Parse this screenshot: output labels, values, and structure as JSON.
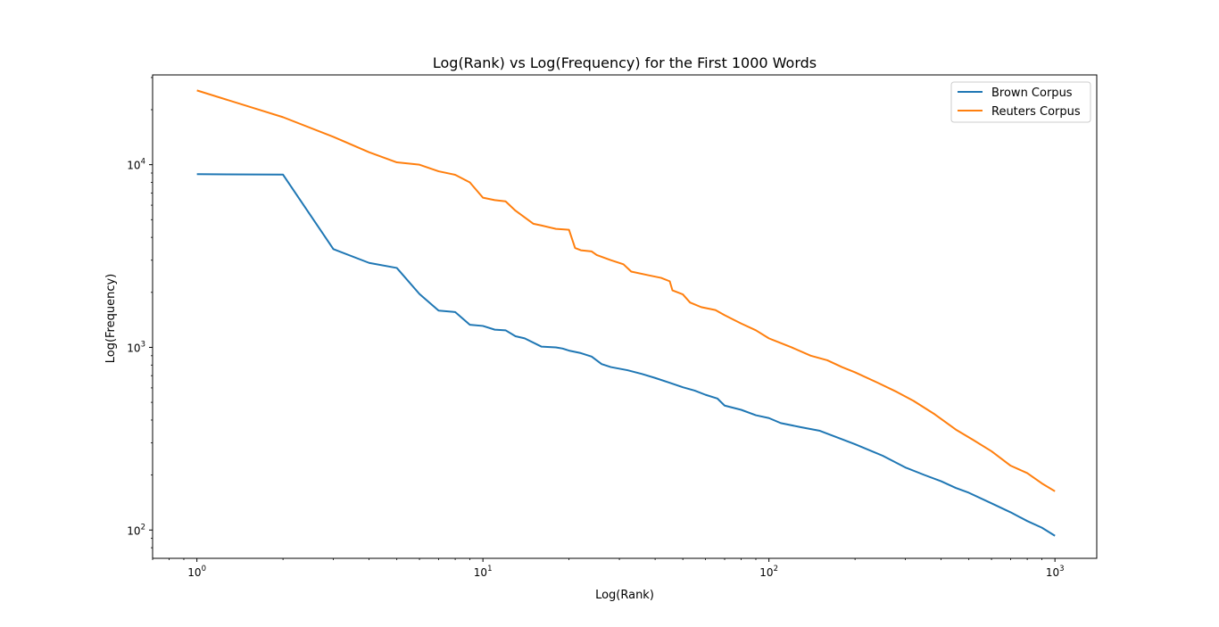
{
  "chart_data": {
    "type": "line",
    "title": "Log(Rank) vs Log(Frequency) for the First 1000 Words",
    "xlabel": "Log(Rank)",
    "ylabel": "Log(Frequency)",
    "xscale": "log",
    "yscale": "log",
    "xlim": [
      0.7,
      1400
    ],
    "ylim": [
      70,
      31000
    ],
    "grid": false,
    "legend_position": "upper right",
    "x_tick_labels": [
      {
        "value": 1,
        "base": "10",
        "exp": "0"
      },
      {
        "value": 10,
        "base": "10",
        "exp": "1"
      },
      {
        "value": 100,
        "base": "10",
        "exp": "2"
      },
      {
        "value": 1000,
        "base": "10",
        "exp": "3"
      }
    ],
    "y_tick_labels": [
      {
        "value": 100,
        "base": "10",
        "exp": "2"
      },
      {
        "value": 1000,
        "base": "10",
        "exp": "3"
      },
      {
        "value": 10000,
        "base": "10",
        "exp": "4"
      }
    ],
    "series": [
      {
        "name": "Brown Corpus",
        "color": "#1f77b4",
        "points": [
          [
            1,
            8870
          ],
          [
            2,
            8820
          ],
          [
            3,
            3450
          ],
          [
            4,
            2900
          ],
          [
            5,
            2720
          ],
          [
            6,
            1960
          ],
          [
            7,
            1590
          ],
          [
            8,
            1560
          ],
          [
            9,
            1330
          ],
          [
            10,
            1310
          ],
          [
            11,
            1250
          ],
          [
            12,
            1240
          ],
          [
            13,
            1150
          ],
          [
            14,
            1120
          ],
          [
            16,
            1010
          ],
          [
            18,
            1000
          ],
          [
            19,
            985
          ],
          [
            20,
            960
          ],
          [
            22,
            930
          ],
          [
            24,
            890
          ],
          [
            26,
            810
          ],
          [
            28,
            780
          ],
          [
            32,
            750
          ],
          [
            36,
            715
          ],
          [
            40,
            680
          ],
          [
            45,
            640
          ],
          [
            50,
            605
          ],
          [
            55,
            580
          ],
          [
            60,
            550
          ],
          [
            66,
            525
          ],
          [
            70,
            480
          ],
          [
            80,
            455
          ],
          [
            90,
            425
          ],
          [
            100,
            410
          ],
          [
            110,
            385
          ],
          [
            130,
            365
          ],
          [
            150,
            350
          ],
          [
            170,
            325
          ],
          [
            200,
            295
          ],
          [
            250,
            255
          ],
          [
            300,
            220
          ],
          [
            350,
            200
          ],
          [
            400,
            185
          ],
          [
            450,
            170
          ],
          [
            500,
            160
          ],
          [
            600,
            140
          ],
          [
            700,
            125
          ],
          [
            800,
            112
          ],
          [
            900,
            103
          ],
          [
            1000,
            93
          ]
        ]
      },
      {
        "name": "Reuters Corpus",
        "color": "#ff7f0e",
        "points": [
          [
            1,
            25500
          ],
          [
            2,
            18200
          ],
          [
            3,
            14200
          ],
          [
            4,
            11700
          ],
          [
            5,
            10300
          ],
          [
            6,
            10000
          ],
          [
            7,
            9200
          ],
          [
            8,
            8800
          ],
          [
            9,
            8000
          ],
          [
            10,
            6600
          ],
          [
            11,
            6400
          ],
          [
            12,
            6300
          ],
          [
            13,
            5600
          ],
          [
            15,
            4750
          ],
          [
            16,
            4650
          ],
          [
            18,
            4450
          ],
          [
            20,
            4400
          ],
          [
            21,
            3500
          ],
          [
            22,
            3400
          ],
          [
            24,
            3350
          ],
          [
            25,
            3200
          ],
          [
            28,
            3000
          ],
          [
            31,
            2850
          ],
          [
            33,
            2600
          ],
          [
            38,
            2480
          ],
          [
            42,
            2400
          ],
          [
            45,
            2300
          ],
          [
            46,
            2050
          ],
          [
            50,
            1950
          ],
          [
            53,
            1760
          ],
          [
            58,
            1660
          ],
          [
            65,
            1600
          ],
          [
            70,
            1500
          ],
          [
            75,
            1420
          ],
          [
            80,
            1350
          ],
          [
            90,
            1240
          ],
          [
            100,
            1120
          ],
          [
            120,
            1000
          ],
          [
            140,
            900
          ],
          [
            160,
            850
          ],
          [
            180,
            780
          ],
          [
            200,
            730
          ],
          [
            240,
            640
          ],
          [
            280,
            570
          ],
          [
            320,
            510
          ],
          [
            380,
            430
          ],
          [
            450,
            355
          ],
          [
            520,
            310
          ],
          [
            600,
            270
          ],
          [
            700,
            225
          ],
          [
            800,
            205
          ],
          [
            900,
            180
          ],
          [
            1000,
            163
          ]
        ]
      }
    ]
  }
}
